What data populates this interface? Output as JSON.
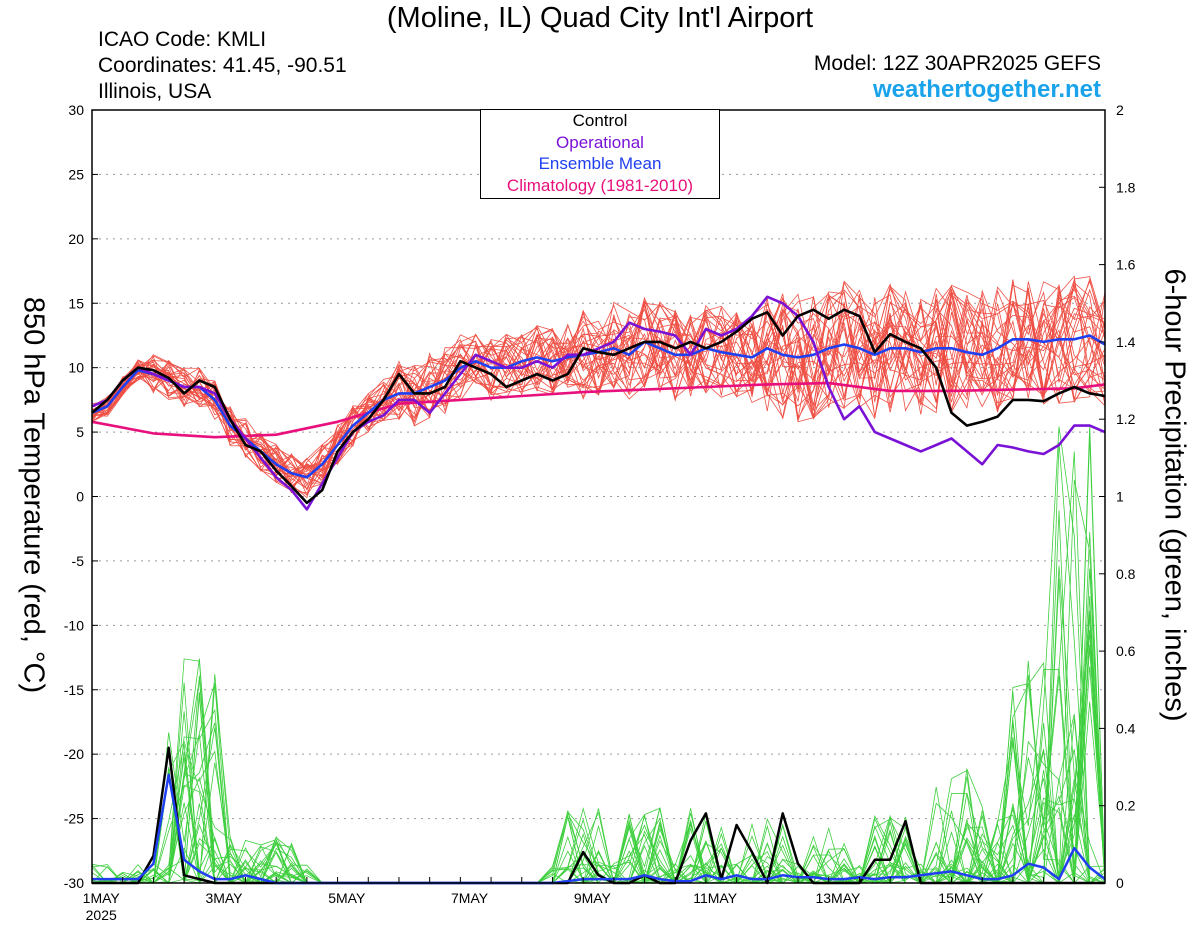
{
  "header": {
    "title": "(Moline, IL) Quad City Int'l Airport",
    "icao": "ICAO Code: KMLI",
    "coordinates": "Coordinates: 41.45, -90.51",
    "region": "Illinois, USA",
    "model": "Model: 12Z 30APR2025 GEFS",
    "website": "weathertogether.net"
  },
  "colors": {
    "temp_members": "#ef4f44",
    "precip_members": "#3ecf3e",
    "control": "#000000",
    "operational": "#7a12d6",
    "ensemble_mean": "#1f3ff0",
    "climatology": "#e8107c",
    "website": "#1aa3ea"
  },
  "chart_data": {
    "type": "line",
    "xlabel": "",
    "ylabel": "850 hPa Temperature (red, °C)",
    "y2label": "6-hour Precipitation (green, inches)",
    "x_tick_labels": [
      "1MAY",
      "3MAY",
      "5MAY",
      "7MAY",
      "9MAY",
      "11MAY",
      "13MAY",
      "15MAY"
    ],
    "x_year_label": "2025",
    "x_domain_days_since_start": [
      0,
      16.5
    ],
    "ylim": [
      -30,
      30
    ],
    "yticks": [
      30,
      25,
      20,
      15,
      10,
      5,
      0,
      -5,
      -10,
      -15,
      -20,
      -25,
      -30
    ],
    "y2lim": [
      0,
      2
    ],
    "y2ticks": [
      2,
      1.8,
      1.6,
      1.4,
      1.2,
      1,
      0.8,
      0.6,
      0.4,
      0.2,
      0
    ],
    "grid": "horizontal dotted",
    "legend": {
      "placement": "top-center",
      "entries": [
        {
          "label": "Control",
          "color": "#000000"
        },
        {
          "label": "Operational",
          "color": "#7a12d6"
        },
        {
          "label": "Ensemble Mean",
          "color": "#1f3ff0"
        },
        {
          "label": "Climatology (1981-2010)",
          "color": "#e8107c"
        }
      ]
    },
    "temperature_series": [
      {
        "name": "Control",
        "color": "#000000",
        "x": [
          0,
          0.25,
          0.5,
          0.75,
          1,
          1.25,
          1.5,
          1.75,
          2,
          2.25,
          2.5,
          2.75,
          3,
          3.25,
          3.5,
          3.75,
          4,
          4.25,
          4.5,
          4.75,
          5,
          5.25,
          5.5,
          5.75,
          6,
          6.25,
          6.5,
          6.75,
          7,
          7.25,
          7.5,
          7.75,
          8,
          8.25,
          8.5,
          8.75,
          9,
          9.25,
          9.5,
          9.75,
          10,
          10.25,
          10.5,
          10.75,
          11,
          11.25,
          11.5,
          11.75,
          12,
          12.25,
          12.5,
          12.75,
          13,
          13.25,
          13.5,
          13.75,
          14,
          14.25,
          14.5,
          14.75,
          15,
          15.25,
          15.5,
          15.75,
          16,
          16.25,
          16.5
        ],
        "y": [
          6.5,
          7.5,
          9,
          10,
          9.8,
          9.2,
          8,
          9,
          8.5,
          6,
          4,
          3.5,
          2,
          0.8,
          -0.5,
          0.5,
          3.5,
          5,
          6,
          7.5,
          9.5,
          8,
          8,
          8.5,
          10.5,
          10,
          9.5,
          8.5,
          9,
          9.5,
          9,
          9.5,
          11.5,
          11.2,
          11,
          11.5,
          12,
          12,
          11.5,
          12,
          11.5,
          12,
          12.8,
          13.8,
          14.3,
          12.5,
          14,
          14.5,
          13.8,
          14.5,
          14,
          11.2,
          12.6,
          12,
          11.5,
          10,
          6.5,
          5.5,
          5.8,
          6.2,
          7.5,
          7.5,
          7.4,
          8,
          8.5,
          8,
          7.8
        ]
      },
      {
        "name": "Operational",
        "color": "#7a12d6",
        "x": [
          0,
          0.25,
          0.5,
          0.75,
          1,
          1.25,
          1.5,
          1.75,
          2,
          2.25,
          2.5,
          2.75,
          3,
          3.25,
          3.5,
          3.75,
          4,
          4.25,
          4.5,
          4.75,
          5,
          5.25,
          5.5,
          5.75,
          6,
          6.25,
          6.5,
          6.75,
          7,
          7.25,
          7.5,
          7.75,
          8,
          8.25,
          8.5,
          8.75,
          9,
          9.25,
          9.5,
          9.75,
          10,
          10.25,
          10.5,
          10.75,
          11,
          11.25,
          11.5,
          11.75,
          12,
          12.25,
          12.5,
          12.75,
          13,
          13.25,
          13.5,
          13.75,
          14,
          14.25,
          14.5,
          14.75,
          15,
          15.25,
          15.5,
          15.75,
          16,
          16.25,
          16.5
        ],
        "y": [
          7,
          7.5,
          9,
          10,
          9.5,
          9,
          8.5,
          8.5,
          8,
          6,
          4.5,
          3,
          1.5,
          0.5,
          -1,
          1,
          3,
          5,
          5.8,
          6.3,
          7.5,
          7.5,
          6.5,
          8,
          9.5,
          11,
          10.5,
          10,
          10,
          10.5,
          10,
          11,
          11,
          11.5,
          12,
          13.5,
          13,
          12.8,
          12.5,
          11,
          13,
          12.5,
          13,
          14,
          15.5,
          15,
          14,
          12,
          8.5,
          6,
          7,
          5,
          4.5,
          4,
          3.5,
          4,
          4.5,
          3.5,
          2.5,
          4,
          3.8,
          3.5,
          3.3,
          4,
          5.5,
          5.5,
          5
        ]
      },
      {
        "name": "Ensemble Mean",
        "color": "#1f3ff0",
        "x": [
          0,
          0.25,
          0.5,
          0.75,
          1,
          1.25,
          1.5,
          1.75,
          2,
          2.25,
          2.5,
          2.75,
          3,
          3.25,
          3.5,
          3.75,
          4,
          4.25,
          4.5,
          4.75,
          5,
          5.25,
          5.5,
          5.75,
          6,
          6.25,
          6.5,
          6.75,
          7,
          7.25,
          7.5,
          7.75,
          8,
          8.25,
          8.5,
          8.75,
          9,
          9.25,
          9.5,
          9.75,
          10,
          10.25,
          10.5,
          10.75,
          11,
          11.25,
          11.5,
          11.75,
          12,
          12.25,
          12.5,
          12.75,
          13,
          13.25,
          13.5,
          13.75,
          14,
          14.25,
          14.5,
          14.75,
          15,
          15.25,
          15.5,
          15.75,
          16,
          16.25,
          16.5
        ],
        "y": [
          6.5,
          7,
          8.5,
          9.8,
          9.5,
          9,
          8.5,
          8.5,
          7.5,
          5.5,
          4.5,
          3.5,
          2.5,
          1.8,
          1.5,
          2.5,
          4,
          5.5,
          6.5,
          7.5,
          8,
          8,
          8.5,
          9,
          10,
          10.5,
          10,
          10,
          10.5,
          10.8,
          10.5,
          10.8,
          11,
          11.2,
          11.5,
          11,
          12,
          11.5,
          11,
          11,
          11.5,
          11.2,
          11,
          10.8,
          11.5,
          11,
          10.8,
          11,
          11.5,
          11.8,
          11.5,
          11,
          11.5,
          11.5,
          11.2,
          11.5,
          11.5,
          11.2,
          11,
          11.5,
          12.2,
          12.2,
          12,
          12.2,
          12.2,
          12.5,
          11.8
        ]
      },
      {
        "name": "Climatology (1981-2010)",
        "color": "#e8107c",
        "x": [
          0,
          1,
          2,
          3,
          4,
          5,
          6,
          7,
          8,
          9,
          10,
          11,
          12,
          13,
          14,
          15,
          16,
          16.5
        ],
        "y": [
          5.8,
          4.9,
          4.6,
          4.8,
          5.8,
          7.2,
          7.5,
          7.8,
          8.1,
          8.3,
          8.5,
          8.7,
          8.8,
          8.2,
          8.2,
          8.3,
          8.4,
          8.7
        ]
      }
    ],
    "temperature_member_count": 30,
    "precipitation_series": [
      {
        "name": "Control",
        "color": "#000000",
        "x": [
          0,
          0.25,
          0.5,
          0.75,
          1,
          1.25,
          1.5,
          1.75,
          2,
          2.25,
          2.5,
          7.5,
          7.75,
          8,
          8.25,
          8.5,
          8.75,
          9,
          9.25,
          9.5,
          9.75,
          10,
          10.25,
          10.5,
          10.75,
          11,
          11.25,
          11.5,
          11.75,
          12,
          12.25,
          12.5,
          12.75,
          13,
          13.25,
          13.5,
          13.75,
          14,
          14.25,
          16.5
        ],
        "y": [
          0,
          0,
          0,
          0,
          0.07,
          0.35,
          0.02,
          0.01,
          0,
          0,
          0,
          0,
          0,
          0.08,
          0.02,
          0,
          0,
          0.02,
          0,
          0,
          0.11,
          0.18,
          0.01,
          0.15,
          0.08,
          0,
          0.18,
          0.05,
          0,
          0,
          0,
          0,
          0.06,
          0.06,
          0.16,
          0,
          0,
          0,
          0,
          0
        ]
      },
      {
        "name": "Ensemble Mean",
        "color": "#1f3ff0",
        "x": [
          0,
          0.25,
          0.5,
          0.75,
          1,
          1.25,
          1.5,
          1.75,
          2,
          2.25,
          2.5,
          2.75,
          3,
          3.25,
          3.5,
          7.5,
          7.75,
          8,
          8.25,
          8.5,
          8.75,
          9,
          9.25,
          9.5,
          9.75,
          10,
          10.25,
          10.5,
          10.75,
          11,
          11.25,
          11.5,
          11.75,
          12,
          12.25,
          12.5,
          12.75,
          13,
          13.25,
          13.5,
          13.75,
          14,
          14.25,
          14.5,
          14.75,
          15,
          15.25,
          15.5,
          15.75,
          16,
          16.25,
          16.5
        ],
        "y": [
          0.01,
          0.01,
          0.01,
          0.01,
          0.05,
          0.28,
          0.06,
          0.03,
          0.01,
          0.01,
          0.02,
          0.01,
          0,
          0,
          0,
          0,
          0.005,
          0.01,
          0.01,
          0.01,
          0.01,
          0.02,
          0.01,
          0.005,
          0.005,
          0.02,
          0.01,
          0.02,
          0.01,
          0.01,
          0.02,
          0.015,
          0.015,
          0.01,
          0.01,
          0.015,
          0.01,
          0.015,
          0.015,
          0.02,
          0.025,
          0.03,
          0.02,
          0.01,
          0.01,
          0.02,
          0.05,
          0.04,
          0.01,
          0.09,
          0.04,
          0.01
        ]
      }
    ],
    "precipitation_member_count": 30
  }
}
